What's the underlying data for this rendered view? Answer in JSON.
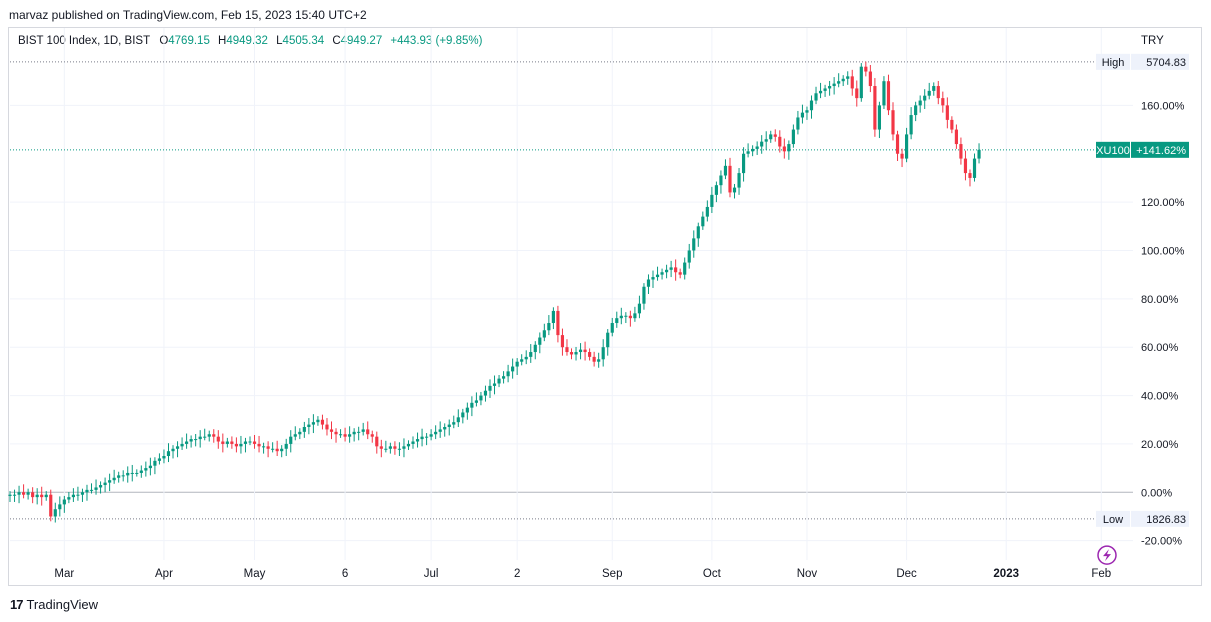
{
  "publisher_line": "marvaz published on TradingView.com, Feb 15, 2023 15:40 UTC+2",
  "legend": {
    "symbol": "BIST 100 Index, 1D, BIST",
    "open_label": "O",
    "open": "4769.15",
    "high_label": "H",
    "high": "4949.32",
    "low_label": "L",
    "low": "4505.34",
    "close_label": "C",
    "close": "4949.27",
    "change": "+443.93 (+9.85%)"
  },
  "currency": "TRY",
  "footer": {
    "logo": "17",
    "brand": "TradingView"
  },
  "colors": {
    "up": "#089981",
    "down": "#f23645",
    "price_tag": "#089981",
    "baseline": "#b2b5be",
    "grid": "#f0f3fa"
  },
  "chart_data": {
    "type": "candlestick",
    "y_unit": "percent change from start",
    "y_ticks": [
      "160.00%",
      "120.00%",
      "100.00%",
      "80.00%",
      "60.00%",
      "40.00%",
      "20.00%",
      "0.00%",
      "-20.00%"
    ],
    "y_tick_values": [
      160,
      120,
      100,
      80,
      60,
      40,
      20,
      0,
      -20
    ],
    "ylim": [
      -28,
      192
    ],
    "x_labels": [
      "Mar",
      "Apr",
      "May",
      "6",
      "Jul",
      "2",
      "Sep",
      "Oct",
      "Nov",
      "Dec",
      "2023",
      "Feb"
    ],
    "x_label_positions": [
      12,
      34,
      54,
      74,
      93,
      112,
      133,
      155,
      176,
      198,
      220,
      241
    ],
    "x_range": [
      0,
      248
    ],
    "high_marker": {
      "label": "High",
      "value": "5704.83",
      "pct": 178
    },
    "low_marker": {
      "label": "Low",
      "value": "1826.83",
      "pct": -11
    },
    "last_price": {
      "symbol": "XU100",
      "value": "+141.62%",
      "pct": 141.62
    },
    "closes": [
      -1,
      -1,
      0,
      -1,
      0,
      -2,
      -1,
      -2,
      -1,
      -10,
      -7,
      -5,
      -3,
      -2,
      -1,
      -1,
      0,
      1,
      1,
      2,
      3,
      4,
      5,
      6,
      7,
      7,
      8,
      8,
      8,
      9,
      10,
      11,
      13,
      14,
      15,
      17,
      18,
      19,
      20,
      21,
      22,
      22,
      23,
      23,
      24,
      23,
      21,
      20,
      21,
      20,
      19,
      20,
      21,
      21,
      20,
      19,
      19,
      18,
      18,
      17,
      18,
      20,
      23,
      24,
      25,
      27,
      28,
      29,
      30,
      28,
      26,
      25,
      24,
      24,
      23,
      24,
      25,
      25,
      26,
      24,
      23,
      19,
      18,
      18,
      19,
      18,
      18,
      19,
      20,
      21,
      22,
      23,
      23,
      24,
      25,
      26,
      27,
      28,
      29,
      31,
      33,
      35,
      37,
      38,
      40,
      42,
      44,
      45,
      47,
      48,
      50,
      52,
      54,
      55,
      56,
      58,
      61,
      64,
      67,
      70,
      75,
      65,
      60,
      58,
      57,
      58,
      59,
      58,
      56,
      54,
      55,
      60,
      66,
      70,
      72,
      73,
      73,
      72,
      74,
      78,
      85,
      88,
      89,
      90,
      91,
      92,
      93,
      91,
      90,
      95,
      100,
      105,
      110,
      114,
      118,
      123,
      127,
      131,
      135,
      124,
      126,
      132,
      140,
      141,
      142,
      143,
      145,
      146,
      148,
      147,
      143,
      141,
      144,
      150,
      155,
      157,
      158,
      162,
      165,
      166,
      167,
      168,
      169,
      170,
      171,
      172,
      167,
      163,
      176,
      174,
      168,
      150,
      160,
      170,
      158,
      148,
      140,
      138,
      148,
      156,
      160,
      162,
      164,
      166,
      168,
      163,
      160,
      154,
      150,
      144,
      138,
      132,
      130,
      138,
      141.62
    ],
    "ohlc_note": "bodies derived from consecutive closes"
  }
}
